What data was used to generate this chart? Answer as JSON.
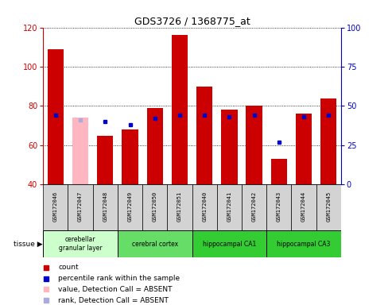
{
  "title": "GDS3726 / 1368775_at",
  "samples": [
    "GSM172046",
    "GSM172047",
    "GSM172048",
    "GSM172049",
    "GSM172050",
    "GSM172051",
    "GSM172040",
    "GSM172041",
    "GSM172042",
    "GSM172043",
    "GSM172044",
    "GSM172045"
  ],
  "count_values": [
    109,
    74,
    65,
    68,
    79,
    116,
    90,
    78,
    80,
    53,
    76,
    84
  ],
  "percentile_rank": [
    44,
    41,
    40,
    38,
    42,
    44,
    44,
    43,
    44,
    27,
    43,
    44
  ],
  "absent_mask": [
    false,
    true,
    false,
    false,
    false,
    false,
    false,
    false,
    false,
    false,
    false,
    false
  ],
  "bar_bottom": 40,
  "ylim_left": [
    40,
    120
  ],
  "ylim_right": [
    0,
    100
  ],
  "yticks_left": [
    40,
    60,
    80,
    100,
    120
  ],
  "yticks_right": [
    0,
    25,
    50,
    75,
    100
  ],
  "color_red": "#CC0000",
  "color_pink": "#FFB6C1",
  "color_blue": "#0000CC",
  "color_lightblue": "#AAAADD",
  "color_bg_grey": "#D3D3D3",
  "left_axis_color": "#CC0000",
  "right_axis_color": "#0000CC",
  "tissue_defs": [
    {
      "start": 0,
      "end": 2,
      "label": "cerebellar\ngranular layer",
      "color": "#CCFFCC"
    },
    {
      "start": 3,
      "end": 5,
      "label": "cerebral cortex",
      "color": "#66DD66"
    },
    {
      "start": 6,
      "end": 8,
      "label": "hippocampal CA1",
      "color": "#33CC33"
    },
    {
      "start": 9,
      "end": 11,
      "label": "hippocampal CA3",
      "color": "#33CC33"
    }
  ],
  "legend_items": [
    {
      "label": "count",
      "color": "#CC0000"
    },
    {
      "label": "percentile rank within the sample",
      "color": "#0000CC"
    },
    {
      "label": "value, Detection Call = ABSENT",
      "color": "#FFB6C1"
    },
    {
      "label": "rank, Detection Call = ABSENT",
      "color": "#AAAADD"
    }
  ]
}
